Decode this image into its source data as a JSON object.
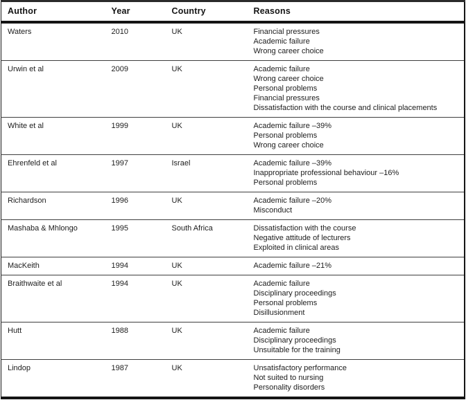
{
  "table": {
    "columns": [
      "Author",
      "Year",
      "Country",
      "Reasons"
    ],
    "rows": [
      {
        "author": "Waters",
        "year": "2010",
        "country": "UK",
        "reasons": [
          "Financial pressures",
          "Academic failure",
          "Wrong career choice"
        ]
      },
      {
        "author": "Urwin et al",
        "year": "2009",
        "country": "UK",
        "reasons": [
          "Academic failure",
          "Wrong career choice",
          "Personal problems",
          "Financial pressures",
          "Dissatisfaction with the course and clinical placements"
        ]
      },
      {
        "author": "White et al",
        "year": "1999",
        "country": "UK",
        "reasons": [
          "Academic failure –39%",
          "Personal problems",
          "Wrong career choice"
        ]
      },
      {
        "author": "Ehrenfeld et al",
        "year": "1997",
        "country": "Israel",
        "reasons": [
          "Academic failure –39%",
          "Inappropriate professional behaviour –16%",
          "Personal problems"
        ]
      },
      {
        "author": "Richardson",
        "year": "1996",
        "country": "UK",
        "reasons": [
          "Academic failure –20%",
          "Misconduct"
        ]
      },
      {
        "author": "Mashaba & Mhlongo",
        "year": "1995",
        "country": "South Africa",
        "reasons": [
          "Dissatisfaction with the course",
          "Negative attitude of lecturers",
          "Exploited in clinical areas"
        ]
      },
      {
        "author": "MacKeith",
        "year": "1994",
        "country": "UK",
        "reasons": [
          "Academic failure –21%"
        ]
      },
      {
        "author": "Braithwaite et al",
        "year": "1994",
        "country": "UK",
        "reasons": [
          "Academic failure",
          "Disciplinary proceedings",
          "Personal problems",
          "Disillusionment"
        ]
      },
      {
        "author": "Hutt",
        "year": "1988",
        "country": "UK",
        "reasons": [
          "Academic failure",
          "Disciplinary proceedings",
          "Unsuitable for the training"
        ]
      },
      {
        "author": "Lindop",
        "year": "1987",
        "country": "UK",
        "reasons": [
          "Unsatisfactory performance",
          "Not suited to nursing",
          "Personality disorders"
        ]
      }
    ]
  },
  "colors": {
    "text": "#1c1c1c",
    "heavy_border": "#141414",
    "row_divider": "#3d3d3d",
    "background": "#ffffff"
  }
}
